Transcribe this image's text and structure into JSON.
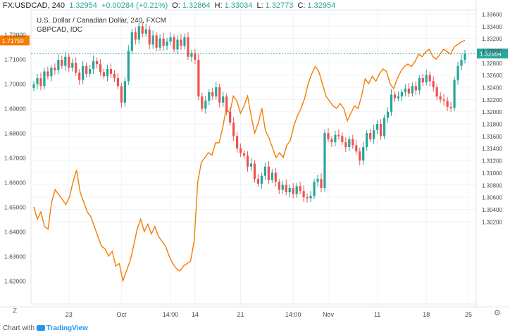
{
  "header": {
    "symbol": "FX:USDCAD, 240",
    "last": "1.32954",
    "change": "+0.00284 (+0.21%)",
    "o_label": "O:",
    "o_val": "1.32864",
    "h_label": "H:",
    "h_val": "1.33034",
    "l_label": "L:",
    "l_val": "1.32773",
    "c_label": "C:",
    "c_val": "1.32954"
  },
  "title": "U.S. Dollar / Canadian Dollar, 240, FXCM",
  "overlay_label": "GBPCAD, IDC",
  "footer": {
    "text": "Chart with",
    "brand": "TradingView"
  },
  "z_button": "Z",
  "settings_icon": "gear-icon",
  "colors": {
    "up": "#26a69a",
    "down": "#ef5350",
    "overlay": "#f57c00",
    "grid": "#f0f3fa",
    "axis_text": "#4a4a4a",
    "last_line": "#26a69a"
  },
  "chart_data": [
    {
      "type": "candlestick",
      "name": "USDCAD",
      "axis": "right",
      "ylim": [
        1.3015,
        1.3386
      ],
      "yticks": [
        "1.33600",
        "1.33400",
        "1.33200",
        "1.33000",
        "1.32800",
        "1.32600",
        "1.32400",
        "1.32200",
        "1.32000",
        "1.31800",
        "1.31600",
        "1.31400",
        "1.31200",
        "1.31000",
        "1.30800",
        "1.30600",
        "1.30400",
        "1.30200"
      ],
      "ytick_values": [
        1.336,
        1.334,
        1.332,
        1.33,
        1.328,
        1.326,
        1.324,
        1.322,
        1.32,
        1.318,
        1.316,
        1.314,
        1.312,
        1.31,
        1.308,
        1.306,
        1.304,
        1.302
      ],
      "current_value": 1.32954,
      "current_label": "1.32954",
      "x_labels": [
        "23",
        "Oct",
        "14:00",
        "14",
        "21",
        "14:00",
        "Nov",
        "11",
        "18",
        "25"
      ],
      "x_label_index": [
        10,
        25,
        39,
        46,
        59,
        74,
        84,
        98,
        112,
        124
      ],
      "closes": [
        1.3245,
        1.3255,
        1.3242,
        1.3266,
        1.3258,
        1.3272,
        1.3268,
        1.3285,
        1.3275,
        1.329,
        1.3272,
        1.328,
        1.3264,
        1.3252,
        1.3275,
        1.3262,
        1.327,
        1.3283,
        1.3278,
        1.3265,
        1.3258,
        1.327,
        1.3262,
        1.3255,
        1.3242,
        1.3215,
        1.325,
        1.33,
        1.333,
        1.3318,
        1.334,
        1.3328,
        1.3335,
        1.331,
        1.3325,
        1.3305,
        1.332,
        1.3308,
        1.3315,
        1.3322,
        1.3302,
        1.3318,
        1.3308,
        1.3322,
        1.329,
        1.3296,
        1.3285,
        1.3225,
        1.3205,
        1.3218,
        1.3232,
        1.3225,
        1.324,
        1.3215,
        1.3225,
        1.32,
        1.3182,
        1.316,
        1.314,
        1.3132,
        1.3128,
        1.311,
        1.3115,
        1.309,
        1.3082,
        1.3095,
        1.311,
        1.3088,
        1.31,
        1.3085,
        1.3072,
        1.308,
        1.3068,
        1.3075,
        1.3065,
        1.3078,
        1.307,
        1.306,
        1.3058,
        1.3062,
        1.3085,
        1.309,
        1.3075,
        1.3165,
        1.3155,
        1.315,
        1.3162,
        1.316,
        1.315,
        1.3142,
        1.3155,
        1.3145,
        1.3135,
        1.312,
        1.3142,
        1.3165,
        1.3155,
        1.317,
        1.318,
        1.316,
        1.319,
        1.32,
        1.3228,
        1.3222,
        1.3225,
        1.3232,
        1.3238,
        1.323,
        1.3242,
        1.3235,
        1.3255,
        1.3248,
        1.326,
        1.325,
        1.324,
        1.3225,
        1.322,
        1.3218,
        1.3208,
        1.3206,
        1.3252,
        1.3275,
        1.3285,
        1.3295
      ],
      "ohlc_mode": "derived from closes"
    },
    {
      "type": "line",
      "name": "GBPCAD, IDC",
      "axis": "left",
      "ylim": [
        1.6117,
        1.7225
      ],
      "yticks": [
        "1.72000",
        "1.71000",
        "1.70000",
        "1.69000",
        "1.68000",
        "1.67000",
        "1.66000",
        "1.65000",
        "1.64000",
        "1.63000",
        "1.62000"
      ],
      "ytick_values": [
        1.72,
        1.71,
        1.7,
        1.69,
        1.68,
        1.67,
        1.66,
        1.65,
        1.64,
        1.63,
        1.62
      ],
      "current_value": 1.71759,
      "current_label": "1.71759",
      "values": [
        1.65,
        1.645,
        1.648,
        1.642,
        1.641,
        1.652,
        1.657,
        1.655,
        1.653,
        1.651,
        1.654,
        1.66,
        1.665,
        1.656,
        1.652,
        1.648,
        1.646,
        1.642,
        1.638,
        1.634,
        1.633,
        1.63,
        1.632,
        1.626,
        1.627,
        1.62,
        1.624,
        1.628,
        1.634,
        1.641,
        1.645,
        1.64,
        1.643,
        1.639,
        1.642,
        1.638,
        1.636,
        1.634,
        1.63,
        1.627,
        1.625,
        1.624,
        1.626,
        1.627,
        1.628,
        1.636,
        1.66,
        1.668,
        1.67,
        1.672,
        1.671,
        1.676,
        1.676,
        1.682,
        1.69,
        1.688,
        1.695,
        1.693,
        1.688,
        1.691,
        1.695,
        1.687,
        1.68,
        1.684,
        1.69,
        1.681,
        1.678,
        1.674,
        1.67,
        1.672,
        1.67,
        1.675,
        1.677,
        1.683,
        1.687,
        1.69,
        1.694,
        1.7,
        1.704,
        1.707,
        1.705,
        1.7,
        1.695,
        1.693,
        1.691,
        1.69,
        1.692,
        1.69,
        1.685,
        1.688,
        1.691,
        1.69,
        1.695,
        1.702,
        1.7,
        1.703,
        1.701,
        1.704,
        1.706,
        1.705,
        1.7,
        1.698,
        1.702,
        1.705,
        1.707,
        1.708,
        1.707,
        1.709,
        1.712,
        1.711,
        1.713,
        1.714,
        1.711,
        1.71,
        1.712,
        1.714,
        1.713,
        1.712,
        1.715,
        1.716,
        1.717,
        1.7176
      ]
    }
  ]
}
